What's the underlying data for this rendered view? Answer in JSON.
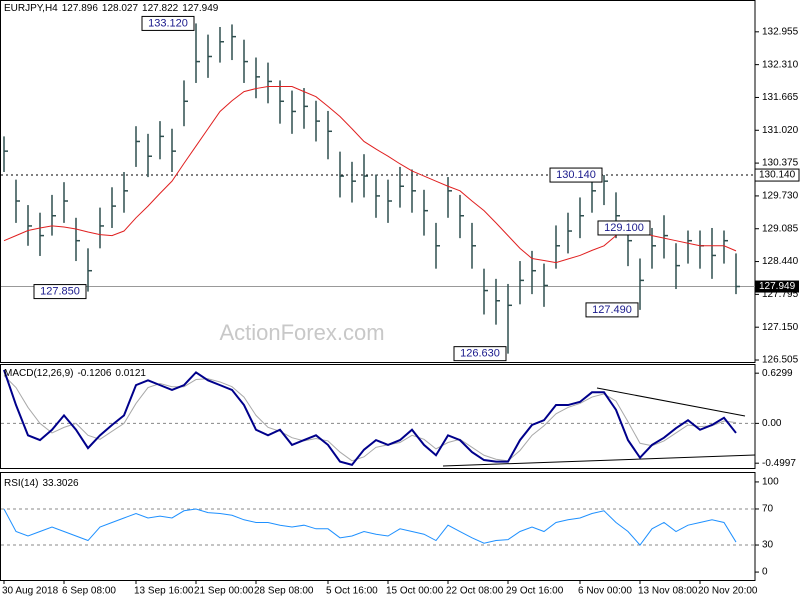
{
  "chart_data": [
    {
      "type": "ohlc",
      "title": "EURJPY,H4",
      "quote": [
        127.896,
        128.027,
        127.822,
        127.949
      ],
      "watermark": "ActionForex.com",
      "color": "#2f4f4f",
      "high": [
        130.9,
        130.05,
        129.55,
        129.4,
        129.75,
        130.0,
        129.3,
        128.7,
        129.5,
        129.9,
        130.2,
        131.1,
        130.95,
        131.2,
        131.05,
        132.0,
        133.12,
        132.9,
        133.05,
        133.1,
        132.8,
        132.45,
        132.35,
        132.0,
        131.8,
        131.85,
        131.6,
        131.4,
        130.6,
        130.4,
        130.55,
        130.15,
        130.05,
        130.3,
        130.25,
        129.85,
        129.2,
        130.1,
        129.75,
        129.2,
        128.3,
        128.1,
        128.0,
        128.45,
        128.65,
        128.4,
        129.15,
        129.4,
        129.7,
        130.1,
        130.14,
        129.8,
        129.25,
        128.5,
        129.1,
        129.35,
        128.8,
        129.05,
        129.05,
        129.1,
        129.05,
        128.6
      ],
      "low": [
        130.2,
        129.2,
        128.75,
        128.55,
        128.95,
        129.2,
        128.45,
        127.85,
        128.7,
        129.1,
        129.4,
        130.3,
        130.1,
        130.45,
        130.2,
        131.1,
        131.95,
        132.05,
        132.35,
        132.4,
        131.95,
        131.65,
        131.55,
        131.15,
        130.95,
        131.05,
        130.8,
        130.45,
        129.7,
        129.6,
        129.7,
        129.3,
        129.2,
        129.5,
        129.4,
        128.95,
        128.3,
        129.3,
        128.9,
        128.3,
        127.4,
        127.2,
        126.63,
        127.6,
        127.8,
        127.55,
        128.3,
        128.6,
        128.9,
        129.4,
        129.55,
        128.9,
        128.35,
        127.49,
        128.3,
        128.5,
        127.9,
        128.4,
        128.3,
        128.1,
        128.4,
        127.8
      ],
      "close": [
        130.61,
        129.63,
        129.14,
        128.95,
        129.34,
        129.63,
        128.85,
        128.26,
        129.14,
        129.53,
        129.83,
        130.8,
        130.51,
        130.9,
        130.61,
        131.59,
        132.37,
        132.47,
        132.76,
        132.86,
        132.37,
        132.07,
        131.98,
        131.59,
        131.39,
        131.49,
        131.2,
        131.0,
        130.12,
        130.02,
        130.12,
        129.73,
        129.63,
        129.92,
        129.83,
        129.44,
        128.75,
        129.83,
        129.34,
        128.75,
        127.87,
        127.67,
        127.58,
        128.07,
        128.26,
        127.97,
        128.75,
        129.04,
        129.34,
        129.83,
        130.02,
        129.34,
        128.85,
        128.07,
        128.75,
        128.95,
        128.36,
        128.85,
        128.75,
        128.56,
        128.85,
        127.95
      ],
      "overlay": {
        "color": "#e02020",
        "values": [
          128.85,
          128.95,
          129.05,
          129.1,
          129.14,
          129.12,
          129.08,
          129.02,
          128.97,
          128.95,
          129.04,
          129.3,
          129.53,
          129.78,
          130.02,
          130.37,
          130.71,
          131.05,
          131.39,
          131.6,
          131.78,
          131.84,
          131.88,
          131.88,
          131.88,
          131.78,
          131.68,
          131.49,
          131.29,
          131.05,
          130.8,
          130.65,
          130.51,
          130.36,
          130.22,
          130.12,
          130.02,
          129.92,
          129.83,
          129.63,
          129.44,
          129.2,
          128.95,
          128.7,
          128.5,
          128.46,
          128.42,
          128.49,
          128.56,
          128.66,
          128.75,
          128.95,
          129.14,
          129.04,
          128.95,
          128.9,
          128.85,
          128.8,
          128.75,
          128.75,
          128.75,
          128.65
        ]
      },
      "callouts": [
        {
          "value": 133.12,
          "label": "133.120"
        },
        {
          "value": 127.85,
          "label": "127.850"
        },
        {
          "value": 126.63,
          "label": "126.630"
        },
        {
          "value": 130.14,
          "label": "130.140"
        },
        {
          "value": 127.49,
          "label": "127.490"
        },
        {
          "value": 129.1,
          "label": "129.100"
        }
      ],
      "levels": [
        {
          "value": 130.14,
          "label": "130.140"
        }
      ],
      "ylim": [
        126.466,
        133.541
      ],
      "yticks": [
        {
          "value": 132.955,
          "label": "132.955"
        },
        {
          "value": 132.31,
          "label": "132.310"
        },
        {
          "value": 131.665,
          "label": "131.665"
        },
        {
          "value": 131.02,
          "label": "131.020"
        },
        {
          "value": 130.375,
          "label": "130.375"
        },
        {
          "value": 129.73,
          "label": "129.730"
        },
        {
          "value": 129.085,
          "label": "129.085"
        },
        {
          "value": 128.44,
          "label": "128.440"
        },
        {
          "value": 127.795,
          "label": "127.795"
        },
        {
          "value": 127.15,
          "label": "127.150"
        },
        {
          "value": 126.505,
          "label": "126.505"
        }
      ]
    },
    {
      "type": "line",
      "title": "MACD(12,26,9)",
      "readout": [
        -0.1206,
        0.0121
      ],
      "series": [
        {
          "color": "#00008b",
          "values": [
            0.67,
            0.23,
            -0.15,
            -0.21,
            -0.08,
            0.1,
            -0.08,
            -0.31,
            -0.15,
            -0.02,
            0.1,
            0.48,
            0.54,
            0.48,
            0.42,
            0.48,
            0.64,
            0.54,
            0.48,
            0.42,
            0.23,
            -0.08,
            -0.15,
            -0.08,
            -0.27,
            -0.21,
            -0.15,
            -0.27,
            -0.48,
            -0.52,
            -0.33,
            -0.21,
            -0.27,
            -0.21,
            -0.08,
            -0.27,
            -0.4,
            -0.15,
            -0.21,
            -0.36,
            -0.46,
            -0.48,
            -0.48,
            -0.21,
            -0.02,
            0.04,
            0.23,
            0.23,
            0.27,
            0.39,
            0.39,
            0.17,
            -0.21,
            -0.43,
            -0.27,
            -0.18,
            -0.06,
            0.04,
            -0.08,
            -0.02,
            0.07,
            -0.12
          ]
        },
        {
          "color": "#a9a9a9",
          "values": [
            0.6,
            0.45,
            0.2,
            0.0,
            -0.12,
            -0.05,
            0.0,
            -0.15,
            -0.2,
            -0.1,
            0.0,
            0.25,
            0.45,
            0.5,
            0.46,
            0.46,
            0.55,
            0.56,
            0.52,
            0.46,
            0.33,
            0.1,
            -0.05,
            -0.1,
            -0.18,
            -0.22,
            -0.19,
            -0.22,
            -0.36,
            -0.47,
            -0.42,
            -0.3,
            -0.27,
            -0.24,
            -0.15,
            -0.2,
            -0.32,
            -0.24,
            -0.2,
            -0.3,
            -0.4,
            -0.45,
            -0.47,
            -0.34,
            -0.15,
            -0.03,
            0.12,
            0.2,
            0.25,
            0.33,
            0.37,
            0.28,
            0.02,
            -0.25,
            -0.28,
            -0.22,
            -0.12,
            -0.02,
            -0.04,
            -0.03,
            0.03,
            0.01
          ]
        }
      ],
      "ylim": [
        -0.56,
        0.72
      ],
      "yticks": [
        0.6299,
        {
          "value": 0,
          "label": "0.00"
        },
        -0.4997
      ],
      "ref_lines": [
        0
      ]
    },
    {
      "type": "line",
      "title": "RSI(14)",
      "readout": [
        33.3026
      ],
      "series": [
        {
          "color": "#1e90ff",
          "values": [
            70,
            45,
            40,
            45,
            50,
            45,
            40,
            35,
            50,
            55,
            60,
            65,
            60,
            62,
            60,
            68,
            70,
            66,
            65,
            63,
            58,
            55,
            55,
            52,
            50,
            52,
            48,
            48,
            38,
            40,
            45,
            42,
            40,
            48,
            45,
            42,
            35,
            52,
            45,
            38,
            32,
            35,
            36,
            45,
            50,
            45,
            55,
            58,
            60,
            65,
            68,
            55,
            45,
            30,
            48,
            55,
            45,
            52,
            55,
            58,
            55,
            33.3
          ]
        }
      ],
      "ylim": [
        -8.8,
        108.8
      ],
      "yticks": [
        100,
        70,
        30,
        0
      ],
      "ref_lines": [
        70,
        30
      ],
      "categories": [
        "30 Aug 2018",
        null,
        null,
        null,
        null,
        "6 Sep 08:00",
        null,
        null,
        null,
        null,
        null,
        "13 Sep 16:00",
        null,
        null,
        null,
        null,
        "21 Sep 00:00",
        null,
        null,
        null,
        null,
        "28 Sep 08:00",
        null,
        null,
        null,
        null,
        null,
        "5 Oct 16:00",
        null,
        null,
        null,
        null,
        "15 Oct 00:00",
        null,
        null,
        null,
        null,
        "22 Oct 08:00",
        null,
        null,
        null,
        null,
        "29 Oct 16:00",
        null,
        null,
        null,
        null,
        null,
        "6 Nov 00:00",
        null,
        null,
        null,
        null,
        "13 Nov 08:00",
        null,
        null,
        null,
        null,
        "20 Nov 20:00",
        null,
        null,
        null
      ]
    }
  ]
}
